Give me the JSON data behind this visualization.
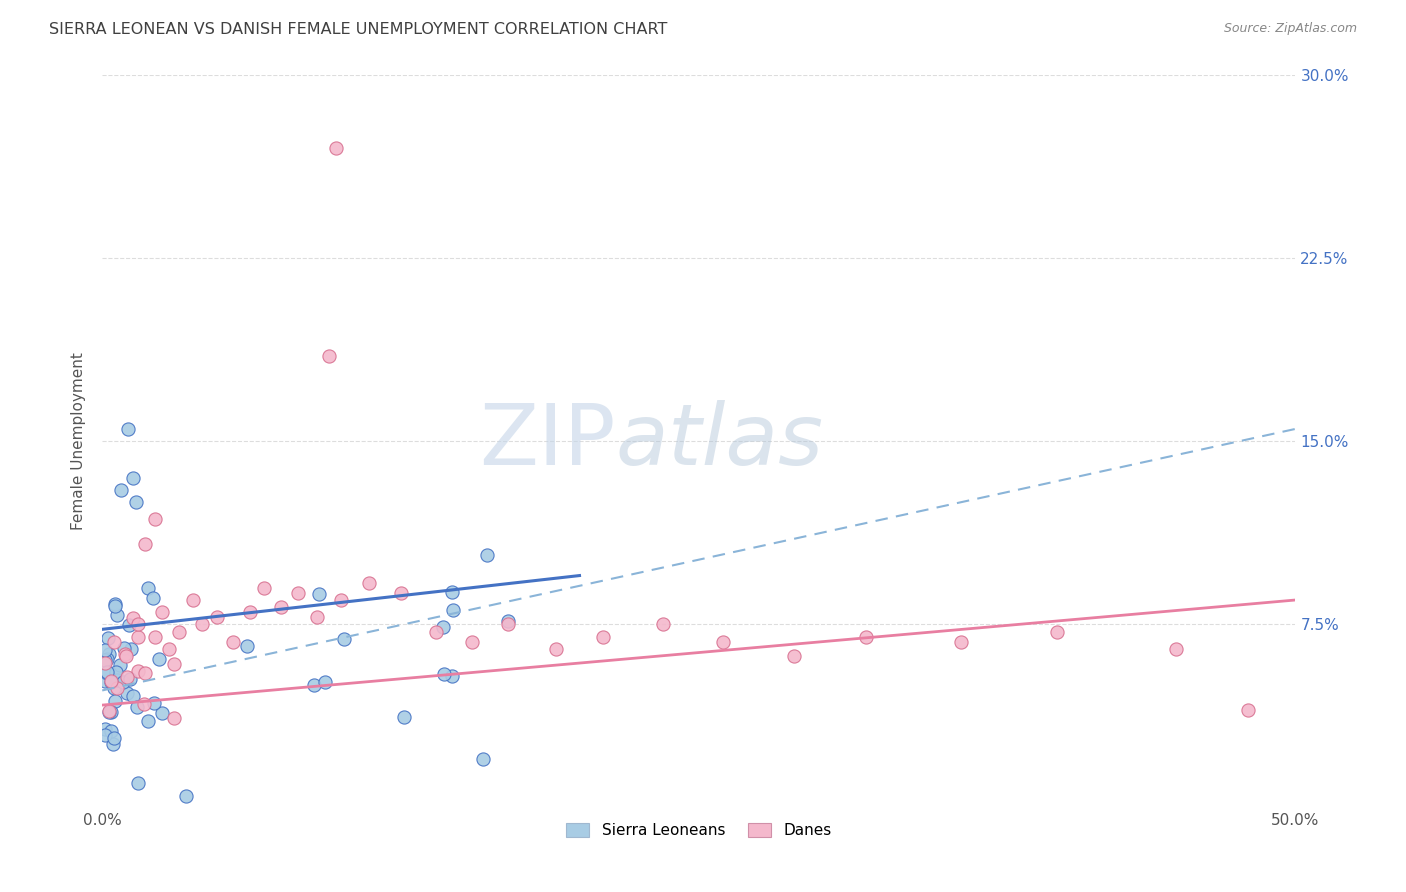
{
  "title": "SIERRA LEONEAN VS DANISH FEMALE UNEMPLOYMENT CORRELATION CHART",
  "source": "Source: ZipAtlas.com",
  "ylabel": "Female Unemployment",
  "color_blue": "#a8cce4",
  "color_pink": "#f4b8cc",
  "color_blue_line": "#4472c4",
  "color_pink_line": "#e87ea1",
  "color_blue_dashed": "#8ab4d8",
  "watermark_zip_color": "#c8d8ec",
  "watermark_atlas_color": "#b8c8e0",
  "background_color": "#ffffff",
  "title_color": "#404040",
  "source_color": "#888888",
  "legend_text_color": "#4472c4",
  "legend_label_color": "#333333",
  "right_tick_color": "#4472c4",
  "xlim": [
    0.0,
    0.5
  ],
  "ylim": [
    0.0,
    0.3
  ],
  "scatter_size": 90
}
